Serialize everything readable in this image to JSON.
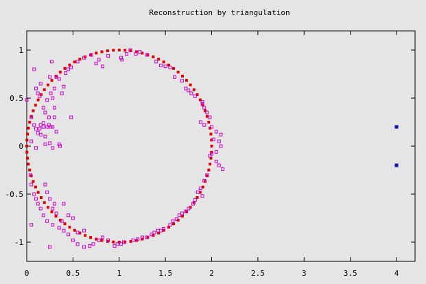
{
  "chart_data": {
    "type": "scatter",
    "title": "Reconstruction by triangulation",
    "xlabel": "",
    "ylabel": "",
    "xlim": [
      0,
      4.2
    ],
    "ylim": [
      -1.2,
      1.2
    ],
    "grid": false,
    "x_ticks": [
      0,
      0.5,
      1,
      1.5,
      2,
      2.5,
      3,
      3.5,
      4
    ],
    "x_tick_labels": [
      "0",
      "0.5",
      "1",
      "1.5",
      "2",
      "2.5",
      "3",
      "3.5",
      "4"
    ],
    "y_ticks": [
      -1,
      -0.5,
      0,
      0.5,
      1
    ],
    "y_tick_labels": [
      "-1",
      "-0.5",
      "0",
      "0.5",
      "1"
    ],
    "series": [
      {
        "marker": "filled-square",
        "color": "#dd0000",
        "circle": {
          "center": [
            1,
            0
          ],
          "radius": 1,
          "count": 100
        }
      },
      {
        "marker": "open-square",
        "color": "#cc00cc",
        "points": [
          [
            0.0,
            0.48
          ],
          [
            0.05,
            0.3
          ],
          [
            0.08,
            0.22
          ],
          [
            0.1,
            0.18
          ],
          [
            0.12,
            0.14
          ],
          [
            0.15,
            0.12
          ],
          [
            0.18,
            0.2
          ],
          [
            0.2,
            0.1
          ],
          [
            0.08,
            0.8
          ],
          [
            0.1,
            0.6
          ],
          [
            0.12,
            0.55
          ],
          [
            0.14,
            0.52
          ],
          [
            0.15,
            0.65
          ],
          [
            0.18,
            0.4
          ],
          [
            0.2,
            0.35
          ],
          [
            0.22,
            0.48
          ],
          [
            0.24,
            0.3
          ],
          [
            0.25,
            0.72
          ],
          [
            0.26,
            0.55
          ],
          [
            0.28,
            0.5
          ],
          [
            0.3,
            0.4
          ],
          [
            0.3,
            0.6
          ],
          [
            0.32,
            0.72
          ],
          [
            0.35,
            0.7
          ],
          [
            0.38,
            0.55
          ],
          [
            0.4,
            0.62
          ],
          [
            0.42,
            0.76
          ],
          [
            0.45,
            0.8
          ],
          [
            0.48,
            0.82
          ],
          [
            0.28,
            0.2
          ],
          [
            0.3,
            0.3
          ],
          [
            0.32,
            0.15
          ],
          [
            0.35,
            0.02
          ],
          [
            0.36,
            0.0
          ],
          [
            0.2,
            0.02
          ],
          [
            0.25,
            0.03
          ],
          [
            0.28,
            -0.02
          ],
          [
            0.1,
            -0.02
          ],
          [
            0.05,
            0.05
          ],
          [
            0.15,
            0.22
          ],
          [
            0.18,
            0.24
          ],
          [
            0.22,
            0.2
          ],
          [
            0.24,
            0.22
          ],
          [
            0.26,
            0.2
          ],
          [
            0.27,
            0.88
          ],
          [
            0.14,
            0.18
          ],
          [
            0.48,
            0.3
          ],
          [
            0.55,
            0.88
          ],
          [
            0.62,
            0.92
          ],
          [
            0.7,
            0.95
          ],
          [
            0.75,
            0.86
          ],
          [
            0.82,
            0.83
          ],
          [
            0.78,
            0.9
          ],
          [
            0.88,
            0.94
          ],
          [
            1.02,
            0.92
          ],
          [
            1.03,
            0.9
          ],
          [
            1.08,
            0.96
          ],
          [
            1.12,
            1.0
          ],
          [
            1.18,
            0.96
          ],
          [
            1.22,
            0.98
          ],
          [
            1.3,
            0.95
          ],
          [
            1.4,
            0.88
          ],
          [
            1.45,
            0.84
          ],
          [
            1.5,
            0.83
          ],
          [
            1.55,
            0.82
          ],
          [
            1.6,
            0.72
          ],
          [
            1.68,
            0.68
          ],
          [
            1.72,
            0.6
          ],
          [
            1.75,
            0.58
          ],
          [
            1.78,
            0.55
          ],
          [
            1.82,
            0.52
          ],
          [
            1.9,
            0.46
          ],
          [
            1.9,
            0.44
          ],
          [
            1.92,
            0.4
          ],
          [
            1.95,
            0.35
          ],
          [
            1.98,
            0.3
          ],
          [
            1.88,
            0.25
          ],
          [
            1.92,
            0.22
          ],
          [
            2.0,
            0.2
          ],
          [
            2.05,
            0.15
          ],
          [
            2.1,
            0.12
          ],
          [
            2.02,
            0.07
          ],
          [
            2.08,
            0.05
          ],
          [
            2.1,
            0.0
          ],
          [
            2.05,
            -0.06
          ],
          [
            2.0,
            -0.08
          ],
          [
            1.98,
            -0.1
          ],
          [
            2.05,
            -0.16
          ],
          [
            2.08,
            -0.2
          ],
          [
            2.12,
            -0.24
          ],
          [
            1.95,
            -0.3
          ],
          [
            1.92,
            -0.36
          ],
          [
            1.88,
            -0.44
          ],
          [
            1.85,
            -0.48
          ],
          [
            1.9,
            -0.52
          ],
          [
            1.82,
            -0.56
          ],
          [
            1.8,
            -0.6
          ],
          [
            1.75,
            -0.65
          ],
          [
            1.68,
            -0.7
          ],
          [
            1.72,
            -0.68
          ],
          [
            1.65,
            -0.72
          ],
          [
            1.62,
            -0.76
          ],
          [
            1.58,
            -0.78
          ],
          [
            1.55,
            -0.82
          ],
          [
            1.48,
            -0.86
          ],
          [
            1.45,
            -0.88
          ],
          [
            1.42,
            -0.88
          ],
          [
            1.38,
            -0.9
          ],
          [
            1.35,
            -0.92
          ],
          [
            1.3,
            -0.95
          ],
          [
            1.25,
            -0.95
          ],
          [
            1.2,
            -0.97
          ],
          [
            1.15,
            -0.98
          ],
          [
            1.05,
            -1.0
          ],
          [
            1.02,
            -1.02
          ],
          [
            0.98,
            -1.02
          ],
          [
            0.95,
            -1.04
          ],
          [
            0.88,
            -0.98
          ],
          [
            0.82,
            -0.95
          ],
          [
            0.78,
            -0.98
          ],
          [
            0.72,
            -1.02
          ],
          [
            0.68,
            -1.04
          ],
          [
            0.62,
            -1.05
          ],
          [
            0.55,
            -1.02
          ],
          [
            0.5,
            -0.98
          ],
          [
            0.45,
            -0.92
          ],
          [
            0.4,
            -0.88
          ],
          [
            0.35,
            -0.85
          ],
          [
            0.28,
            -0.82
          ],
          [
            0.22,
            -0.78
          ],
          [
            0.18,
            -0.72
          ],
          [
            0.15,
            -0.65
          ],
          [
            0.12,
            -0.6
          ],
          [
            0.1,
            -0.55
          ],
          [
            0.08,
            -0.5
          ],
          [
            0.05,
            -0.4
          ],
          [
            0.04,
            -0.3
          ],
          [
            0.2,
            -0.4
          ],
          [
            0.22,
            -0.48
          ],
          [
            0.25,
            -0.55
          ],
          [
            0.3,
            -0.6
          ],
          [
            0.32,
            -0.7
          ],
          [
            0.28,
            -0.65
          ],
          [
            0.4,
            -0.6
          ],
          [
            0.45,
            -0.72
          ],
          [
            0.5,
            -0.75
          ],
          [
            0.05,
            -0.82
          ],
          [
            0.38,
            -0.78
          ],
          [
            0.25,
            -1.05
          ],
          [
            0.55,
            -0.9
          ],
          [
            0.62,
            -0.88
          ]
        ]
      },
      {
        "marker": "star",
        "color": "#0000aa",
        "points": [
          [
            4.0,
            0.2
          ],
          [
            4.0,
            -0.2
          ]
        ]
      }
    ]
  }
}
